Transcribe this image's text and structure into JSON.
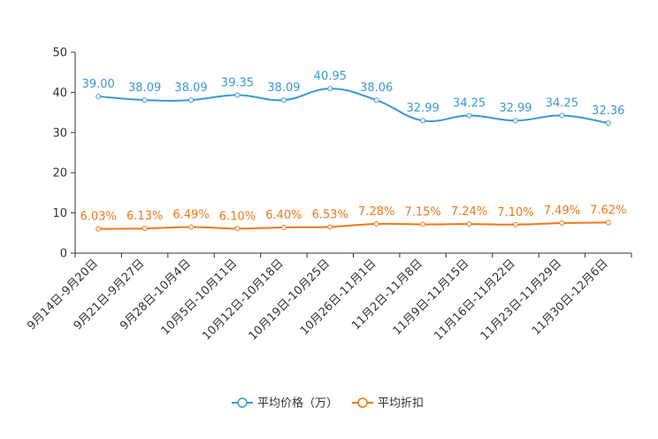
{
  "chart_data": {
    "type": "line",
    "title": "",
    "xlabel": "",
    "ylabel": "",
    "ylim": [
      0,
      50
    ],
    "yticks": [
      0,
      10,
      20,
      30,
      40,
      50
    ],
    "grid": false,
    "legend_position": "bottom-center",
    "categories": [
      "9月14日-9月20日",
      "9月21日-9月27日",
      "9月28日-10月4日",
      "10月5日-10月11日",
      "10月12日-10月18日",
      "10月19日-10月25日",
      "10月26日-11月1日",
      "11月2日-11月8日",
      "11月9日-11月15日",
      "11月16日-11月22日",
      "11月23日-11月29日",
      "11月30日-12月6日"
    ],
    "series": [
      {
        "name": "平均价格（万）",
        "color": "#3a9ad0",
        "values": [
          39.0,
          38.09,
          38.09,
          39.35,
          38.09,
          40.95,
          38.06,
          32.99,
          34.25,
          32.99,
          34.25,
          32.36
        ],
        "labels": [
          "39.00",
          "38.09",
          "38.09",
          "39.35",
          "38.09",
          "40.95",
          "38.06",
          "32.99",
          "34.25",
          "32.99",
          "34.25",
          "32.36"
        ]
      },
      {
        "name": "平均折扣",
        "color": "#f07818",
        "values": [
          6.03,
          6.13,
          6.49,
          6.1,
          6.4,
          6.53,
          7.28,
          7.15,
          7.24,
          7.1,
          7.49,
          7.62
        ],
        "labels": [
          "6.03%",
          "6.13%",
          "6.49%",
          "6.10%",
          "6.40%",
          "6.53%",
          "7.28%",
          "7.15%",
          "7.24%",
          "7.10%",
          "7.49%",
          "7.62%"
        ]
      }
    ]
  }
}
